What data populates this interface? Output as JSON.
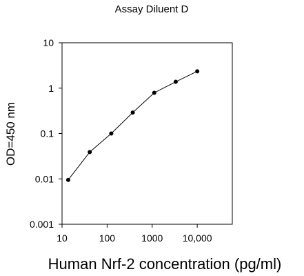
{
  "chart_data": {
    "type": "line",
    "title": "Assay Diluent D",
    "xlabel": "Human Nrf-2 concentration (pg/ml)",
    "ylabel": "OD=450 nm",
    "x_scale": "log",
    "y_scale": "log",
    "xlim": [
      10,
      60000
    ],
    "ylim": [
      0.001,
      10
    ],
    "x_ticks": [
      {
        "value": 10,
        "label": "10"
      },
      {
        "value": 100,
        "label": "100"
      },
      {
        "value": 1000,
        "label": "1000"
      },
      {
        "value": 10000,
        "label": "10,000"
      }
    ],
    "y_ticks": [
      {
        "value": 10,
        "label": "10"
      },
      {
        "value": 1,
        "label": "1"
      },
      {
        "value": 0.1,
        "label": "0.1"
      },
      {
        "value": 0.01,
        "label": "0.01"
      },
      {
        "value": 0.001,
        "label": "0.001"
      }
    ],
    "series": [
      {
        "x": [
          13.7,
          41.2,
          123.5,
          370.4,
          1111,
          3333,
          10000
        ],
        "y": [
          0.0095,
          0.039,
          0.1,
          0.29,
          0.79,
          1.38,
          2.35
        ]
      }
    ],
    "grid": false,
    "legend": "none",
    "colors": {
      "line": "#000000",
      "marker": "#000000",
      "axes": "#000000"
    }
  }
}
